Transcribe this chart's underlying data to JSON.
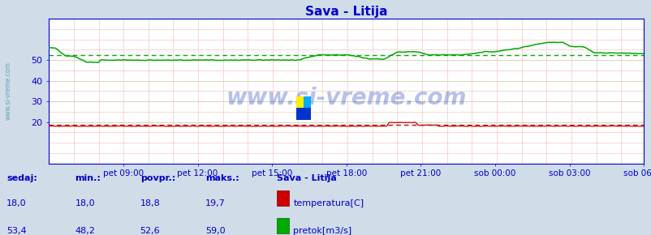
{
  "title": "Sava - Litija",
  "background_color": "#d0dce8",
  "plot_bg_color": "#ffffff",
  "title_color": "#0000cc",
  "axis_color": "#0000cc",
  "tick_color": "#0000cc",
  "watermark": "www.si-vreme.com",
  "ylim": [
    0,
    70
  ],
  "yticks": [
    20,
    30,
    40,
    50
  ],
  "temp_avg": 18.8,
  "flow_avg": 52.6,
  "temp_color": "#cc0000",
  "flow_color": "#00aa00",
  "legend_title": "Sava - Litija",
  "legend_color": "#0000cc",
  "sedaj_label": "sedaj:",
  "min_label": "min.:",
  "povpr_label": "povpr.:",
  "maks_label": "maks.:",
  "temp_row": [
    "18,0",
    "18,0",
    "18,8",
    "19,7"
  ],
  "flow_row": [
    "53,4",
    "48,2",
    "52,6",
    "59,0"
  ],
  "temp_legend": "temperatura[C]",
  "flow_legend": "pretok[m3/s]",
  "xtick_labels": [
    "pet 09:00",
    "pet 12:00",
    "pet 15:00",
    "pet 18:00",
    "pet 21:00",
    "sob 00:00",
    "sob 03:00",
    "sob 06:00"
  ],
  "n_points": 288,
  "minor_grid_color": "#f0c8c8",
  "major_grid_color": "#d8d8c0",
  "sidebar_text_color": "#6699aa"
}
